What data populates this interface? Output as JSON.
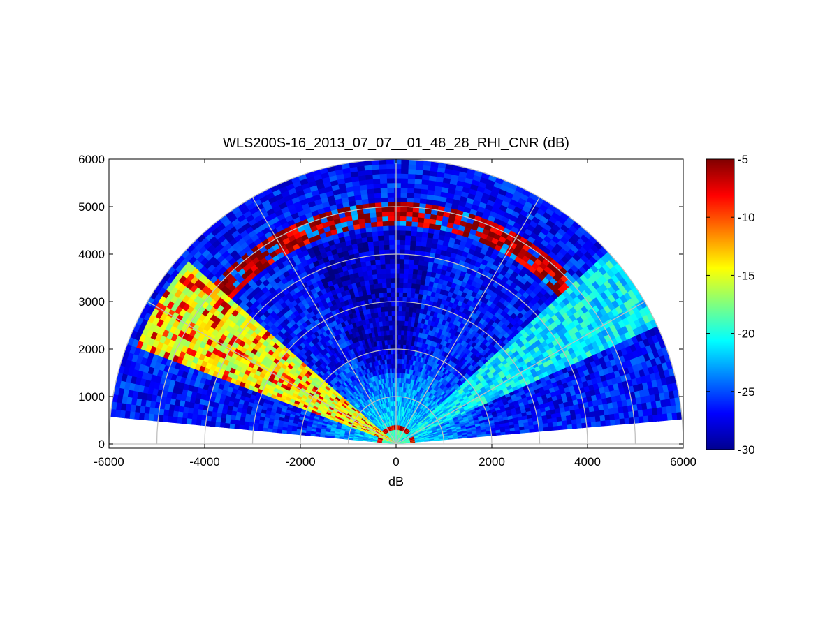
{
  "chart_data": {
    "type": "heatmap",
    "subtype": "polar-rhi-sector",
    "title": "WLS200S-16_2013_07_07__01_48_28_RHI_CNR (dB)",
    "xlabel": "dB",
    "ylabel": "",
    "xlim": [
      -6000,
      6000
    ],
    "ylim": [
      0,
      6000
    ],
    "xticks": [
      "-6000",
      "-4000",
      "-2000",
      "0",
      "2000",
      "4000",
      "6000"
    ],
    "yticks": [
      "0",
      "1000",
      "2000",
      "3000",
      "4000",
      "5000",
      "6000"
    ],
    "polar_grid": {
      "range_rings": [
        1000,
        2000,
        3000,
        4000,
        5000,
        6000
      ],
      "spoke_angles_deg": [
        0,
        30,
        60,
        90,
        120,
        150,
        180
      ]
    },
    "max_range": 6000,
    "elevation_coverage_deg": [
      5,
      174
    ],
    "colorbar": {
      "colormap": "jet",
      "clim": [
        -30,
        -5
      ],
      "ticks": [
        "-5",
        "-10",
        "-15",
        "-20",
        "-25",
        "-30"
      ]
    },
    "features": [
      {
        "elevation_deg": [
          138,
          160
        ],
        "range": [
          0,
          5800
        ],
        "cnr_db": -15
      },
      {
        "elevation_deg": [
          24,
          43
        ],
        "range": [
          0,
          6000
        ],
        "cnr_db": -21
      },
      {
        "elevation_deg": [
          35,
          142
        ],
        "range": [
          4650,
          5050
        ],
        "cnr_db": -6
      },
      {
        "elevation_deg": [
          5,
          175
        ],
        "range": [
          300,
          400
        ],
        "cnr_db": -7
      },
      {
        "elevation_deg": [
          0,
          180
        ],
        "range": [
          0,
          2000
        ],
        "cnr_db": -21
      },
      {
        "elevation_deg": [
          0,
          180
        ],
        "range": [
          2000,
          6000
        ],
        "cnr_db": -27
      }
    ]
  }
}
